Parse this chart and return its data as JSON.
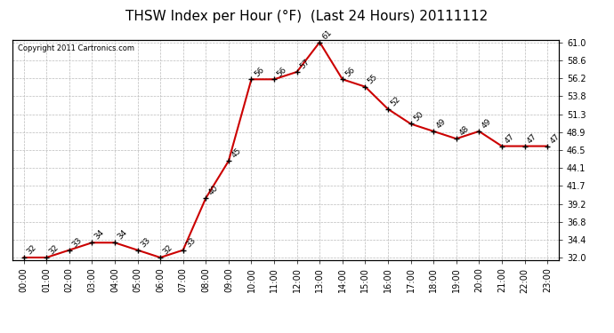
{
  "title": "THSW Index per Hour (°F)  (Last 24 Hours) 20111112",
  "copyright": "Copyright 2011 Cartronics.com",
  "hours": [
    "00:00",
    "01:00",
    "02:00",
    "03:00",
    "04:00",
    "05:00",
    "06:00",
    "07:00",
    "08:00",
    "09:00",
    "10:00",
    "11:00",
    "12:00",
    "13:00",
    "14:00",
    "15:00",
    "16:00",
    "17:00",
    "18:00",
    "19:00",
    "20:00",
    "21:00",
    "22:00",
    "23:00"
  ],
  "values": [
    32,
    32,
    33,
    34,
    34,
    33,
    32,
    33,
    40,
    45,
    56,
    56,
    57,
    61,
    56,
    55,
    52,
    50,
    49,
    48,
    49,
    47,
    47,
    47
  ],
  "ylim_min": 32.0,
  "ylim_max": 61.0,
  "yticks_left": [
    32.0,
    34.4,
    36.8,
    39.2,
    41.7,
    44.1,
    46.5,
    48.9,
    51.3,
    53.8,
    56.2,
    58.6,
    61.0
  ],
  "ytick_labels_left": [
    "32.0",
    "34.4",
    "36.8",
    "39.2",
    "41.7",
    "44.1",
    "46.5",
    "48.9",
    "51.3",
    "53.8",
    "56.2",
    "58.6",
    "61.0"
  ],
  "line_color": "#cc0000",
  "marker": "+",
  "marker_size": 5,
  "marker_color": "#000000",
  "grid_color": "#bbbbbb",
  "bg_color": "#ffffff",
  "title_fontsize": 11,
  "label_fontsize": 7,
  "annotation_fontsize": 6.5,
  "copyright_fontsize": 6
}
